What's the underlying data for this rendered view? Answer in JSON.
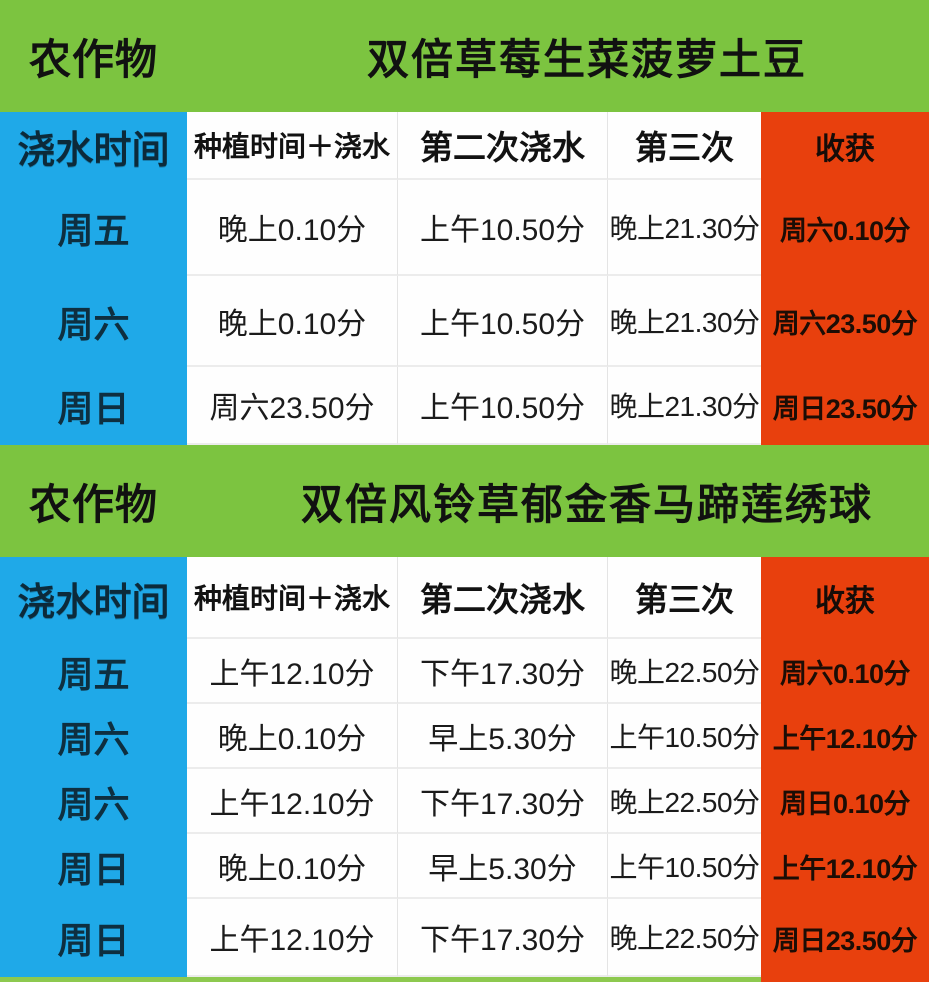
{
  "colors": {
    "band_green": "#7cc440",
    "day_blue": "#1fa9e8",
    "harvest_red": "#e8400d",
    "strip_green": "#8dc94f"
  },
  "t1": {
    "band": {
      "label": "农作物",
      "value": "双倍草莓生菜菠萝土豆"
    },
    "columns": [
      "浇水时间",
      "种植时间＋浇水",
      "第二次浇水",
      "第三次",
      "收获"
    ],
    "rows": [
      {
        "day": "周五",
        "plant": "晚上0.10分",
        "second": "上午10.50分",
        "third": "晚上21.30分",
        "harvest": "周六0.10分"
      },
      {
        "day": "周六",
        "plant": "晚上0.10分",
        "second": "上午10.50分",
        "third": "晚上21.30分",
        "harvest": "周六23.50分"
      },
      {
        "day": "周日",
        "plant": "周六23.50分",
        "second": "上午10.50分",
        "third": "晚上21.30分",
        "harvest": "周日23.50分"
      }
    ]
  },
  "t2": {
    "band": {
      "label": "农作物",
      "value": "双倍风铃草郁金香马蹄莲绣球"
    },
    "columns": [
      "浇水时间",
      "种植时间＋浇水",
      "第二次浇水",
      "第三次",
      "收获"
    ],
    "rows": [
      {
        "day": "周五",
        "plant": "上午12.10分",
        "second": "下午17.30分",
        "third": "晚上22.50分",
        "harvest": "周六0.10分"
      },
      {
        "day": "周六",
        "plant": "晚上0.10分",
        "second": "早上5.30分",
        "third": "上午10.50分",
        "harvest": "上午12.10分"
      },
      {
        "day": "周六",
        "plant": "上午12.10分",
        "second": "下午17.30分",
        "third": "晚上22.50分",
        "harvest": "周日0.10分"
      },
      {
        "day": "周日",
        "plant": "晚上0.10分",
        "second": "早上5.30分",
        "third": "上午10.50分",
        "harvest": "上午12.10分"
      },
      {
        "day": "周日",
        "plant": "上午12.10分",
        "second": "下午17.30分",
        "third": "晚上22.50分",
        "harvest": "周日23.50分"
      }
    ]
  }
}
